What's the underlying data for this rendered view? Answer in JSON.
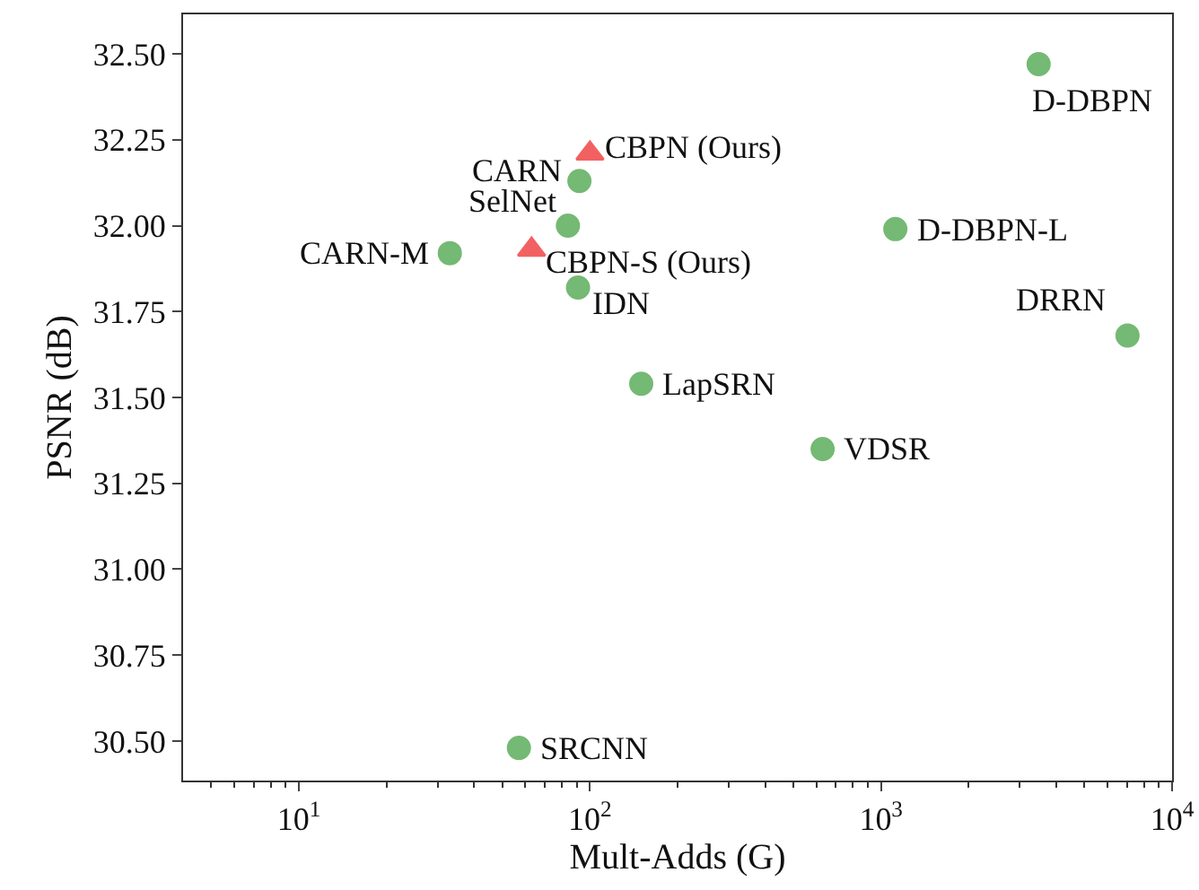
{
  "chart_data": {
    "type": "scatter",
    "xlabel": "Mult-Adds (G)",
    "ylabel": "PSNR (dB)",
    "log": "x",
    "grid": false,
    "xlim": [
      4,
      10000
    ],
    "xticks": [
      {
        "value": 5,
        "label": null
      },
      {
        "value": 6,
        "label": null
      },
      {
        "value": 7,
        "label": null
      },
      {
        "value": 8,
        "label": null
      },
      {
        "value": 9,
        "label": null
      },
      {
        "value": 20,
        "label": null
      },
      {
        "value": 30,
        "label": null
      },
      {
        "value": 40,
        "label": null
      },
      {
        "value": 50,
        "label": null
      },
      {
        "value": 60,
        "label": null
      },
      {
        "value": 70,
        "label": null
      },
      {
        "value": 80,
        "label": null
      },
      {
        "value": 90,
        "label": null
      },
      {
        "value": 200,
        "label": null
      },
      {
        "value": 300,
        "label": null
      },
      {
        "value": 400,
        "label": null
      },
      {
        "value": 500,
        "label": null
      },
      {
        "value": 600,
        "label": null
      },
      {
        "value": 700,
        "label": null
      },
      {
        "value": 800,
        "label": null
      },
      {
        "value": 900,
        "label": null
      },
      {
        "value": 2000,
        "label": null
      },
      {
        "value": 3000,
        "label": null
      },
      {
        "value": 4000,
        "label": null
      },
      {
        "value": 5000,
        "label": null
      },
      {
        "value": 6000,
        "label": null
      },
      {
        "value": 7000,
        "label": null
      },
      {
        "value": 8000,
        "label": null
      },
      {
        "value": 9000,
        "label": null
      },
      {
        "value": 10,
        "label": "10$^{1}$"
      },
      {
        "value": 100,
        "label": "10$^{2}$"
      },
      {
        "value": 1000,
        "label": "10$^{3}$"
      },
      {
        "value": 10000,
        "label": "10$^{4}$"
      }
    ],
    "ylim": [
      30.385,
      32.615
    ],
    "yticks": [
      {
        "value": 30.5,
        "label": "30.50"
      },
      {
        "value": 30.75,
        "label": "30.75"
      },
      {
        "value": 31,
        "label": "31.00"
      },
      {
        "value": 31.25,
        "label": "31.25"
      },
      {
        "value": 31.5,
        "label": "31.50"
      },
      {
        "value": 31.75,
        "label": "31.75"
      },
      {
        "value": 32,
        "label": "32.00"
      },
      {
        "value": 32.25,
        "label": "32.25"
      },
      {
        "value": 32.5,
        "label": "32.50"
      }
    ],
    "series": [
      {
        "color": "#5cad5c",
        "marker": "circle",
        "x": [
          57,
          92,
          84,
          33,
          91,
          150,
          630,
          1120,
          3480,
          7030
        ],
        "values": [
          30.48,
          32.13,
          32.0,
          31.92,
          31.82,
          31.54,
          31.35,
          31.99,
          32.47,
          31.68
        ]
      },
      {
        "color": "#f04646",
        "marker": "triangle",
        "x": [
          100,
          63
        ],
        "values": [
          32.21,
          31.93
        ]
      }
    ],
    "annotations": [
      {
        "text": "SRCNN",
        "x": 57,
        "y": 30.48
      },
      {
        "text": "CARN",
        "x": 92,
        "y": 32.13
      },
      {
        "text": "SelNet",
        "x": 84,
        "y": 32.0
      },
      {
        "text": "CARN-M",
        "x": 33,
        "y": 31.92
      },
      {
        "text": "IDN",
        "x": 91,
        "y": 31.82
      },
      {
        "text": "LapSRN",
        "x": 150,
        "y": 31.54
      },
      {
        "text": "VDSR",
        "x": 630,
        "y": 31.35
      },
      {
        "text": "D-DBPN-L",
        "x": 1120,
        "y": 31.99
      },
      {
        "text": "D-DBPN",
        "x": 3480,
        "y": 32.47
      },
      {
        "text": "DRRN",
        "x": 7030,
        "y": 31.68
      },
      {
        "text": "CBPN (Ours)",
        "x": 100,
        "y": 32.21
      },
      {
        "text": "CBPN-S (Ours)",
        "x": 63,
        "y": 31.93
      }
    ]
  }
}
